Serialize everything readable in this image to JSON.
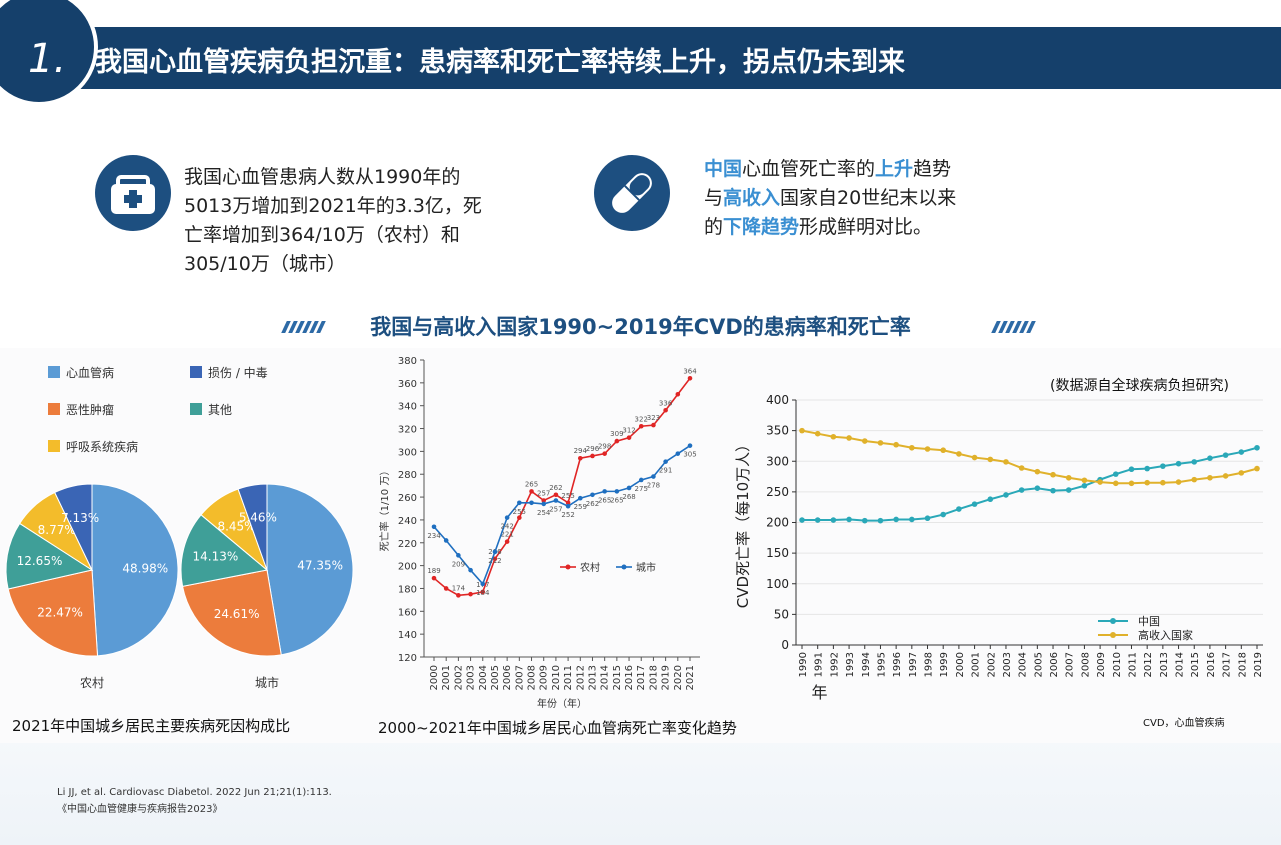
{
  "header": {
    "number": "1.",
    "title": "我国心血管疾病负担沉重：患病率和死亡率持续上升，拐点仍未到来"
  },
  "info_left": {
    "icon": "medical-kit-icon",
    "lines": [
      "我国心血管患病人数从1990年的",
      "5013万增加到2021年的3.3亿，死",
      "亡率增加到364/10万（农村）和",
      "305/10万（城市）"
    ]
  },
  "info_right": {
    "icon": "pill-icon",
    "l1_a": "中国",
    "l1_b": "心血管死亡率的",
    "l1_c": "上升",
    "l1_d": "趋势",
    "l2_a": "与",
    "l2_b": "高收入",
    "l2_c": "国家自20世纪末以来",
    "l3_a": "的",
    "l3_b": "下降趋势",
    "l3_c": "形成鲜明对比。"
  },
  "section_title": "我国与高收入国家1990~2019年CVD的患病率和死亡率",
  "captions": {
    "pie": "2021年中国城乡居民主要疾病死因构成比",
    "line": "2000~2021年中国城乡居民心血管病死亡率变化趋势",
    "cvd_source": "(数据源自全球疾病负担研究)",
    "cvd_note": "CVD，心血管疾病"
  },
  "references": [
    "Li JJ, et al. Cardiovasc Diabetol. 2022 Jun 21;21(1):113.",
    "《中国心血管健康与疾病报告2023》"
  ],
  "chart_data": [
    {
      "type": "pie",
      "legend": [
        "心血管病",
        "损伤 / 中毒",
        "恶性肿瘤",
        "其他",
        "呼吸系统疾病"
      ],
      "colors": {
        "心血管病": "#5b9bd5",
        "损伤 / 中毒": "#3a65b5",
        "恶性肿瘤": "#ec7c3c",
        "其他": "#3f9f98",
        "呼吸系统疾病": "#f3bc2b"
      },
      "pies": [
        {
          "label": "农村",
          "slices": [
            {
              "name": "心血管病",
              "value": 48.98,
              "text": "48.98%"
            },
            {
              "name": "恶性肿瘤",
              "value": 22.47,
              "text": "22.47%"
            },
            {
              "name": "其他",
              "value": 12.65,
              "text": "12.65%"
            },
            {
              "name": "呼吸系统疾病",
              "value": 8.77,
              "text": "8.77%"
            },
            {
              "name": "损伤 / 中毒",
              "value": 7.13,
              "text": "7.13%"
            }
          ]
        },
        {
          "label": "城市",
          "slices": [
            {
              "name": "心血管病",
              "value": 47.35,
              "text": "47.35%"
            },
            {
              "name": "恶性肿瘤",
              "value": 24.61,
              "text": "24.61%"
            },
            {
              "name": "其他",
              "value": 14.13,
              "text": "14.13%"
            },
            {
              "name": "呼吸系统疾病",
              "value": 8.45,
              "text": "8.45%"
            },
            {
              "name": "损伤 / 中毒",
              "value": 5.46,
              "text": "5.46%"
            }
          ]
        }
      ]
    },
    {
      "type": "line",
      "x": [
        2000,
        2001,
        2002,
        2003,
        2004,
        2005,
        2006,
        2007,
        2008,
        2009,
        2010,
        2011,
        2012,
        2013,
        2014,
        2015,
        2016,
        2017,
        2018,
        2019,
        2020,
        2021
      ],
      "xlabel": "年份（年）",
      "ylabel": "死亡率（1/10 万）",
      "ylim": [
        120,
        380
      ],
      "yticks": [
        120,
        140,
        160,
        180,
        200,
        220,
        240,
        260,
        280,
        300,
        320,
        340,
        360,
        380
      ],
      "series": [
        {
          "name": "农村",
          "color": "#e02525",
          "values": [
            189,
            180,
            174,
            175,
            177,
            206,
            221,
            242,
            265,
            257,
            262,
            255,
            294,
            296,
            298,
            309,
            312,
            322,
            323,
            336,
            350,
            364
          ],
          "labels": {
            "0": "189",
            "2": "174",
            "4": "177",
            "5": "206",
            "6": "221",
            "8": "265",
            "9": "257",
            "10": "262",
            "11": "255",
            "12": "294",
            "13": "296",
            "14": "298",
            "15": "309",
            "16": "312",
            "17": "322",
            "18": "323",
            "19": "336",
            "21": "364"
          }
        },
        {
          "name": "城市",
          "color": "#1f6fc0",
          "values": [
            234,
            222,
            209,
            196,
            184,
            212,
            242,
            255,
            255,
            254,
            257,
            252,
            259,
            262,
            265,
            265,
            268,
            275,
            278,
            291,
            298,
            305
          ],
          "labels": {
            "0": "234",
            "2": "209",
            "4": "184",
            "5": "212",
            "6": "242",
            "7": "255",
            "9": "254",
            "10": "257",
            "11": "252",
            "12": "259",
            "13": "262",
            "14": "265",
            "15": "265",
            "16": "268",
            "17": "275",
            "18": "278",
            "19": "291",
            "21": "305"
          }
        }
      ]
    },
    {
      "type": "line",
      "x": [
        1990,
        1991,
        1992,
        1993,
        1994,
        1995,
        1996,
        1997,
        1998,
        1999,
        2000,
        2001,
        2002,
        2003,
        2004,
        2005,
        2006,
        2007,
        2008,
        2009,
        2010,
        2011,
        2012,
        2013,
        2014,
        2015,
        2016,
        2017,
        2018,
        2019
      ],
      "xlabel": "年",
      "ylabel": "CVD死亡率（每10万人）",
      "ylim": [
        0,
        400
      ],
      "yticks": [
        0,
        50,
        100,
        150,
        200,
        250,
        300,
        350,
        400
      ],
      "series": [
        {
          "name": "中国",
          "color": "#2aa8b8",
          "values": [
            204,
            204,
            204,
            205,
            203,
            203,
            205,
            205,
            207,
            213,
            222,
            230,
            238,
            245,
            253,
            256,
            252,
            253,
            260,
            270,
            279,
            287,
            288,
            292,
            296,
            299,
            305,
            310,
            315,
            322
          ]
        },
        {
          "name": "高收入国家",
          "color": "#e0b12b",
          "values": [
            350,
            345,
            340,
            338,
            333,
            330,
            327,
            322,
            320,
            318,
            312,
            306,
            303,
            299,
            289,
            283,
            278,
            273,
            269,
            266,
            264,
            264,
            265,
            265,
            266,
            270,
            273,
            276,
            281,
            288
          ]
        }
      ]
    }
  ]
}
